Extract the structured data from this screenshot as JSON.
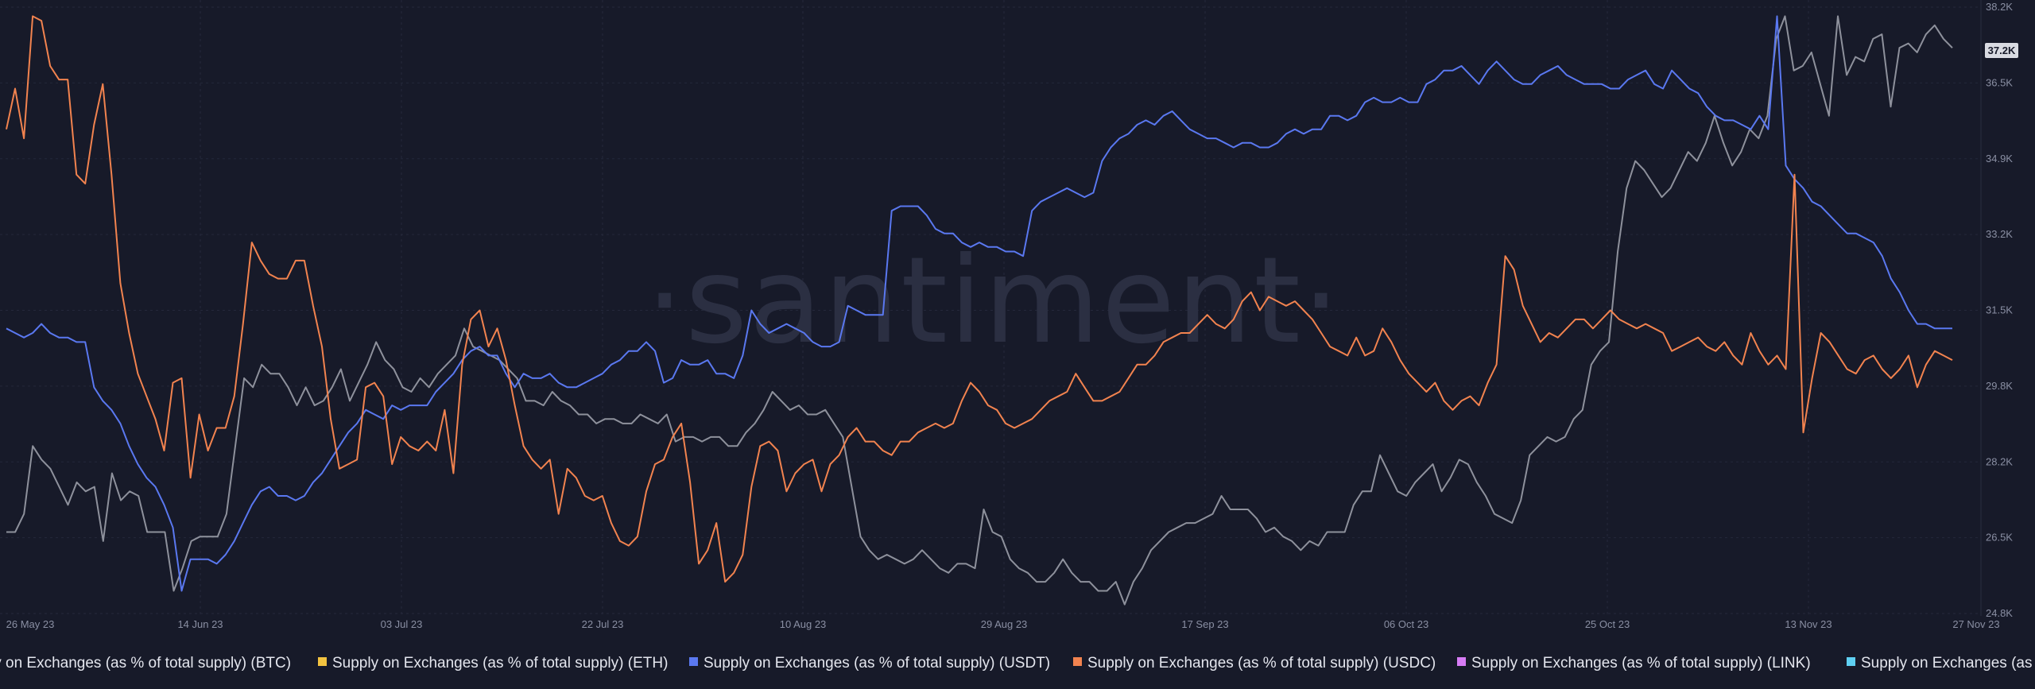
{
  "watermark": "·santiment·",
  "colors": {
    "background": "#171a29",
    "grid": "#24283a",
    "axis_text": "#8a8fa3",
    "legend_text": "#e4e6ee",
    "current_badge_bg": "#d9dbe2",
    "current_badge_text": "#171a29"
  },
  "chart_data": {
    "type": "line",
    "y_axis_position": "right",
    "ylim": [
      24800,
      38200
    ],
    "y_ticks": [
      "38.2K",
      "36.5K",
      "34.9K",
      "33.2K",
      "31.5K",
      "29.8K",
      "28.2K",
      "26.5K",
      "24.8K"
    ],
    "x_ticks": [
      "26 May 23",
      "14 Jun 23",
      "03 Jul 23",
      "22 Jul 23",
      "10 Aug 23",
      "29 Aug 23",
      "17 Sep 23",
      "06 Oct 23",
      "25 Oct 23",
      "13 Nov 23",
      "27 Nov 23"
    ],
    "current_value_label": "37.2K",
    "grid": true,
    "legend_position": "bottom",
    "legend": [
      {
        "label": "Supply on Exchanges (as % of total supply) (BTC)",
        "color": "#b9bcc6"
      },
      {
        "label": "Supply on Exchanges (as % of total supply) (ETH)",
        "color": "#f3c340"
      },
      {
        "label": "Supply on Exchanges (as % of total supply) (USDT)",
        "color": "#5a78f0"
      },
      {
        "label": "Supply on Exchanges (as % of total supply) (USDC)",
        "color": "#f2834f"
      },
      {
        "label": "Supply on Exchanges (as % of total supply) (LINK)",
        "color": "#d77cf5"
      },
      {
        "label": "Supply on Exchanges (as % of total supply) (as %",
        "color": "#5fd0f2"
      }
    ],
    "series": [
      {
        "name": "Supply on Exchanges (as % of total supply) (BTC)",
        "color": "#8e919c",
        "values": [
          26.6,
          26.6,
          27.0,
          28.5,
          28.2,
          28.0,
          27.6,
          27.2,
          27.7,
          27.5,
          27.6,
          26.4,
          27.9,
          27.3,
          27.5,
          27.4,
          26.6,
          26.6,
          26.6,
          25.3,
          25.8,
          26.4,
          26.5,
          26.5,
          26.5,
          27.0,
          28.5,
          30.0,
          29.8,
          30.3,
          30.1,
          30.1,
          29.8,
          29.4,
          29.8,
          29.4,
          29.5,
          29.8,
          30.2,
          29.5,
          29.9,
          30.3,
          30.8,
          30.4,
          30.2,
          29.8,
          29.7,
          30.0,
          29.8,
          30.1,
          30.3,
          30.5,
          31.1,
          30.7,
          30.6,
          30.5,
          30.4,
          30.2,
          30.0,
          29.5,
          29.5,
          29.4,
          29.7,
          29.5,
          29.4,
          29.2,
          29.2,
          29.0,
          29.1,
          29.1,
          29.0,
          29.0,
          29.2,
          29.1,
          29.0,
          29.2,
          28.6,
          28.7,
          28.7,
          28.6,
          28.7,
          28.7,
          28.5,
          28.5,
          28.8,
          29.0,
          29.3,
          29.7,
          29.5,
          29.3,
          29.4,
          29.2,
          29.2,
          29.3,
          29.0,
          28.7,
          27.6,
          26.5,
          26.2,
          26.0,
          26.1,
          26.0,
          25.9,
          26.0,
          26.2,
          26.0,
          25.8,
          25.7,
          25.9,
          25.9,
          25.8,
          27.1,
          26.6,
          26.5,
          26.0,
          25.8,
          25.7,
          25.5,
          25.5,
          25.7,
          26.0,
          25.7,
          25.5,
          25.5,
          25.3,
          25.3,
          25.5,
          25.0,
          25.5,
          25.8,
          26.2,
          26.4,
          26.6,
          26.7,
          26.8,
          26.8,
          26.9,
          27.0,
          27.4,
          27.1,
          27.1,
          27.1,
          26.9,
          26.6,
          26.7,
          26.5,
          26.4,
          26.2,
          26.4,
          26.3,
          26.6,
          26.6,
          26.6,
          27.2,
          27.5,
          27.5,
          28.3,
          27.9,
          27.5,
          27.4,
          27.7,
          27.9,
          28.1,
          27.5,
          27.8,
          28.2,
          28.1,
          27.7,
          27.4,
          27.0,
          26.9,
          26.8,
          27.3,
          28.3,
          28.5,
          28.7,
          28.6,
          28.7,
          29.1,
          29.3,
          30.3,
          30.6,
          30.8,
          32.8,
          34.2,
          34.8,
          34.6,
          34.3,
          34.0,
          34.2,
          34.6,
          35.0,
          34.8,
          35.2,
          35.8,
          35.2,
          34.7,
          35.0,
          35.5,
          35.3,
          35.8,
          37.5,
          38.0,
          36.8,
          36.9,
          37.2,
          36.5,
          35.8,
          38.0,
          36.7,
          37.1,
          37.0,
          37.5,
          37.6,
          36.0,
          37.3,
          37.4,
          37.2,
          37.6,
          37.8,
          37.5,
          37.3
        ]
      },
      {
        "name": "Supply on Exchanges (as % of total supply) (USDT)",
        "color": "#5a78f0",
        "values": [
          31.1,
          31.0,
          30.9,
          31.0,
          31.2,
          31.0,
          30.9,
          30.9,
          30.8,
          30.8,
          29.8,
          29.5,
          29.3,
          29.0,
          28.5,
          28.1,
          27.8,
          27.6,
          27.2,
          26.7,
          25.3,
          26.0,
          26.0,
          26.0,
          25.9,
          26.1,
          26.4,
          26.8,
          27.2,
          27.5,
          27.6,
          27.4,
          27.4,
          27.3,
          27.4,
          27.7,
          27.9,
          28.2,
          28.5,
          28.8,
          29.0,
          29.3,
          29.2,
          29.1,
          29.4,
          29.3,
          29.4,
          29.4,
          29.4,
          29.7,
          29.9,
          30.1,
          30.4,
          30.6,
          30.7,
          30.5,
          30.5,
          30.1,
          29.8,
          30.1,
          30.0,
          30.0,
          30.1,
          29.9,
          29.8,
          29.8,
          29.9,
          30.0,
          30.1,
          30.3,
          30.4,
          30.6,
          30.6,
          30.8,
          30.6,
          29.9,
          30.0,
          30.4,
          30.3,
          30.3,
          30.4,
          30.1,
          30.1,
          30.0,
          30.5,
          31.5,
          31.2,
          31.0,
          31.1,
          31.2,
          31.1,
          31.0,
          30.8,
          30.7,
          30.7,
          30.8,
          31.6,
          31.5,
          31.4,
          31.4,
          31.4,
          33.7,
          33.8,
          33.8,
          33.8,
          33.6,
          33.3,
          33.2,
          33.2,
          33.0,
          32.9,
          33.0,
          32.9,
          32.9,
          32.8,
          32.8,
          32.7,
          33.7,
          33.9,
          34.0,
          34.1,
          34.2,
          34.1,
          34.0,
          34.1,
          34.8,
          35.1,
          35.3,
          35.4,
          35.6,
          35.7,
          35.6,
          35.8,
          35.9,
          35.7,
          35.5,
          35.4,
          35.3,
          35.3,
          35.2,
          35.1,
          35.2,
          35.2,
          35.1,
          35.1,
          35.2,
          35.4,
          35.5,
          35.4,
          35.5,
          35.5,
          35.8,
          35.8,
          35.7,
          35.8,
          36.1,
          36.2,
          36.1,
          36.1,
          36.2,
          36.1,
          36.1,
          36.5,
          36.6,
          36.8,
          36.8,
          36.9,
          36.7,
          36.5,
          36.8,
          37.0,
          36.8,
          36.6,
          36.5,
          36.5,
          36.7,
          36.8,
          36.9,
          36.7,
          36.6,
          36.5,
          36.5,
          36.5,
          36.4,
          36.4,
          36.6,
          36.7,
          36.8,
          36.5,
          36.4,
          36.8,
          36.6,
          36.4,
          36.3,
          36.0,
          35.8,
          35.7,
          35.7,
          35.6,
          35.5,
          35.8,
          35.5,
          38.0,
          34.7,
          34.4,
          34.2,
          33.9,
          33.8,
          33.6,
          33.4,
          33.2,
          33.2,
          33.1,
          33.0,
          32.7,
          32.2,
          31.9,
          31.5,
          31.2,
          31.2,
          31.1,
          31.1,
          31.1
        ]
      },
      {
        "name": "Supply on Exchanges (as % of total supply) (USDC)",
        "color": "#f2834f",
        "values": [
          35.5,
          36.4,
          35.3,
          38.0,
          37.9,
          36.9,
          36.6,
          36.6,
          34.5,
          34.3,
          35.6,
          36.5,
          34.5,
          32.1,
          31.0,
          30.1,
          29.6,
          29.1,
          28.4,
          29.9,
          30.0,
          27.8,
          29.2,
          28.4,
          28.9,
          28.9,
          29.6,
          31.2,
          33.0,
          32.6,
          32.3,
          32.2,
          32.2,
          32.6,
          32.6,
          31.6,
          30.7,
          29.1,
          28.0,
          28.1,
          28.2,
          29.8,
          29.9,
          29.6,
          28.1,
          28.7,
          28.5,
          28.4,
          28.6,
          28.4,
          29.3,
          27.9,
          30.3,
          31.3,
          31.5,
          30.7,
          31.1,
          30.4,
          29.4,
          28.5,
          28.2,
          28.0,
          28.2,
          27.0,
          28.0,
          27.8,
          27.4,
          27.3,
          27.4,
          26.8,
          26.4,
          26.3,
          26.5,
          27.5,
          28.1,
          28.2,
          28.7,
          29.0,
          27.7,
          25.9,
          26.2,
          26.8,
          25.5,
          25.7,
          26.1,
          27.6,
          28.5,
          28.6,
          28.4,
          27.5,
          27.9,
          28.1,
          28.2,
          27.5,
          28.1,
          28.3,
          28.7,
          28.9,
          28.6,
          28.6,
          28.4,
          28.3,
          28.6,
          28.6,
          28.8,
          28.9,
          29.0,
          28.9,
          29.0,
          29.5,
          29.9,
          29.7,
          29.4,
          29.3,
          29.0,
          28.9,
          29.0,
          29.1,
          29.3,
          29.5,
          29.6,
          29.7,
          30.1,
          29.8,
          29.5,
          29.5,
          29.6,
          29.7,
          30.0,
          30.3,
          30.3,
          30.5,
          30.8,
          30.9,
          31.0,
          31.0,
          31.2,
          31.4,
          31.2,
          31.1,
          31.3,
          31.7,
          31.9,
          31.5,
          31.8,
          31.7,
          31.6,
          31.7,
          31.5,
          31.3,
          31.0,
          30.7,
          30.6,
          30.5,
          30.9,
          30.5,
          30.6,
          31.1,
          30.8,
          30.4,
          30.1,
          29.9,
          29.7,
          29.9,
          29.5,
          29.3,
          29.5,
          29.6,
          29.4,
          29.9,
          30.3,
          32.7,
          32.4,
          31.6,
          31.2,
          30.8,
          31.0,
          30.9,
          31.1,
          31.3,
          31.3,
          31.1,
          31.3,
          31.5,
          31.3,
          31.2,
          31.1,
          31.2,
          31.1,
          31.0,
          30.6,
          30.7,
          30.8,
          30.9,
          30.7,
          30.6,
          30.8,
          30.5,
          30.3,
          31.0,
          30.6,
          30.3,
          30.5,
          30.2,
          34.5,
          28.8,
          30.0,
          31.0,
          30.8,
          30.5,
          30.2,
          30.1,
          30.4,
          30.5,
          30.2,
          30.0,
          30.2,
          30.5,
          29.8,
          30.3,
          30.6,
          30.5,
          30.4
        ]
      }
    ]
  }
}
